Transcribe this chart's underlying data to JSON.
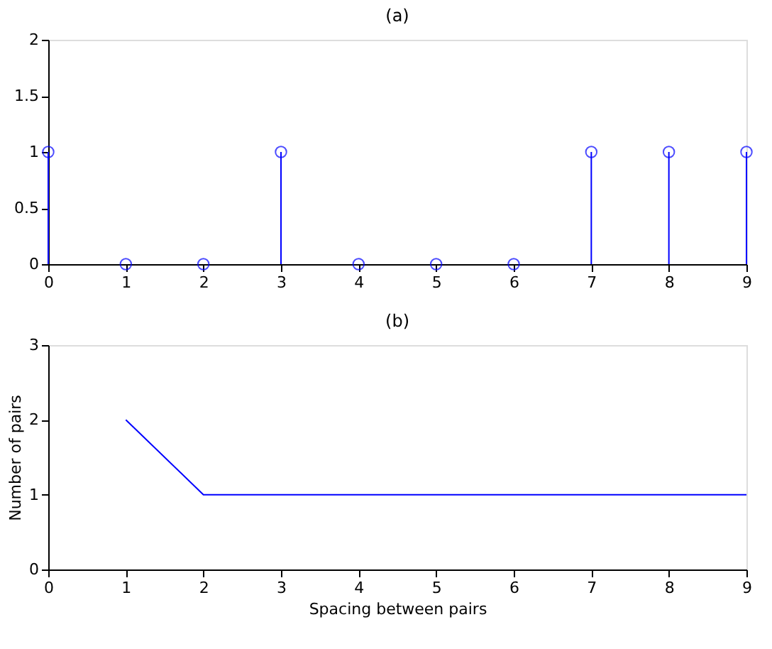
{
  "chart_data": [
    {
      "type": "lollipop",
      "title": "(a)",
      "x": [
        0,
        1,
        2,
        3,
        4,
        5,
        6,
        7,
        8,
        9
      ],
      "series": [
        {
          "color": "#0000ff",
          "values": [
            1,
            0,
            0,
            1,
            0,
            0,
            0,
            1,
            1,
            1
          ]
        }
      ],
      "marker": "circle",
      "xlim": [
        0,
        9
      ],
      "xticks": [
        0,
        1,
        2,
        3,
        4,
        5,
        6,
        7,
        8,
        9
      ],
      "ylim": [
        0,
        2
      ],
      "yticks": [
        0,
        0.5,
        1,
        1.5,
        2
      ],
      "grid": false
    },
    {
      "type": "line",
      "title": "(b)",
      "x": [
        1,
        2,
        3,
        4,
        5,
        6,
        7,
        8,
        9
      ],
      "series": [
        {
          "color": "#0000ff",
          "values": [
            2,
            1,
            1,
            1,
            1,
            1,
            1,
            1,
            1
          ]
        }
      ],
      "xlabel": "Spacing between pairs",
      "ylabel": "Number of pairs",
      "marker": "none",
      "xlim": [
        0,
        9
      ],
      "xticks": [
        0,
        1,
        2,
        3,
        4,
        5,
        6,
        7,
        8,
        9
      ],
      "ylim": [
        0,
        3
      ],
      "yticks": [
        0,
        1,
        2,
        3
      ],
      "grid": false
    }
  ]
}
